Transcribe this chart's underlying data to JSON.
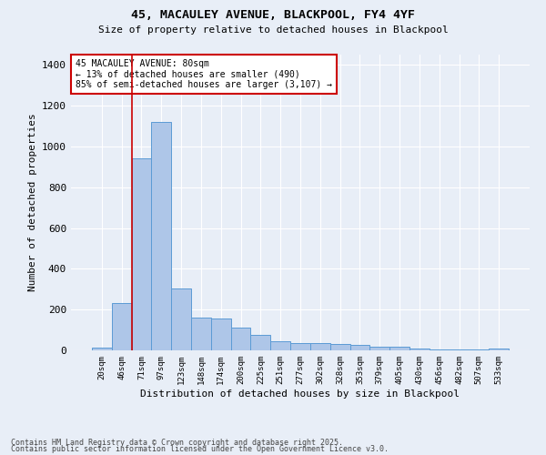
{
  "title1": "45, MACAULEY AVENUE, BLACKPOOL, FY4 4YF",
  "title2": "Size of property relative to detached houses in Blackpool",
  "xlabel": "Distribution of detached houses by size in Blackpool",
  "ylabel": "Number of detached properties",
  "categories": [
    "20sqm",
    "46sqm",
    "71sqm",
    "97sqm",
    "123sqm",
    "148sqm",
    "174sqm",
    "200sqm",
    "225sqm",
    "251sqm",
    "277sqm",
    "302sqm",
    "328sqm",
    "353sqm",
    "379sqm",
    "405sqm",
    "430sqm",
    "456sqm",
    "482sqm",
    "507sqm",
    "533sqm"
  ],
  "values": [
    15,
    230,
    940,
    1120,
    305,
    160,
    155,
    110,
    75,
    45,
    35,
    35,
    30,
    25,
    20,
    20,
    10,
    5,
    5,
    5,
    10
  ],
  "bar_color": "#aec6e8",
  "bar_edge_color": "#5b9bd5",
  "background_color": "#e8eef7",
  "grid_color": "#ffffff",
  "vline_x_index": 2,
  "vline_color": "#cc0000",
  "annotation_text": "45 MACAULEY AVENUE: 80sqm\n← 13% of detached houses are smaller (490)\n85% of semi-detached houses are larger (3,107) →",
  "annotation_box_color": "#ffffff",
  "annotation_box_edge": "#cc0000",
  "footer1": "Contains HM Land Registry data © Crown copyright and database right 2025.",
  "footer2": "Contains public sector information licensed under the Open Government Licence v3.0.",
  "ylim": [
    0,
    1450
  ],
  "yticks": [
    0,
    200,
    400,
    600,
    800,
    1000,
    1200,
    1400
  ],
  "figsize": [
    6.0,
    5.0
  ],
  "dpi": 100
}
